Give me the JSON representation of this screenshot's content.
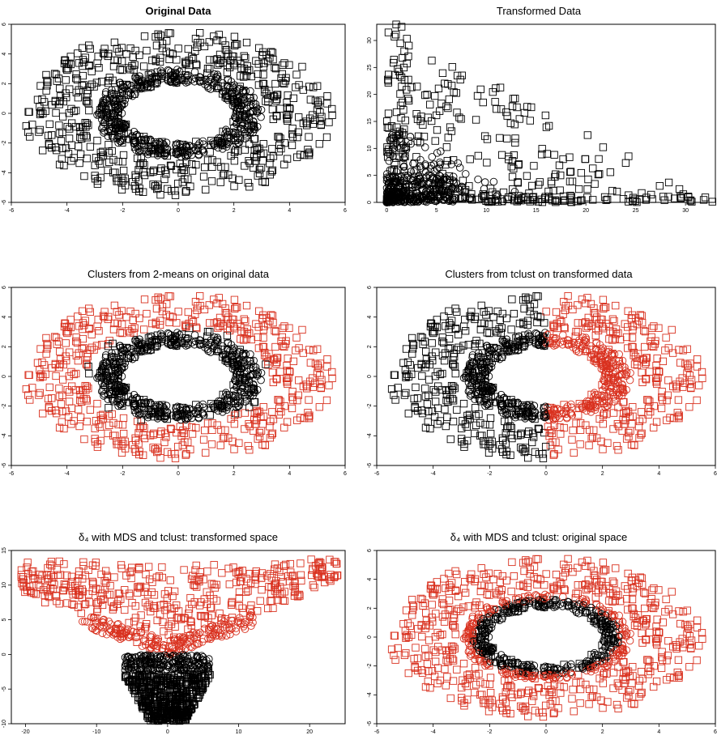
{
  "colors": {
    "cluster_a": "#000000",
    "cluster_b": "#d9311f",
    "frame": "#000000"
  },
  "panels": [
    {
      "title": "Original Data"
    },
    {
      "title": "Transformed Data"
    },
    {
      "title": "Clusters from 2-means on original data"
    },
    {
      "title": "Clusters from tclust on transformed data"
    },
    {
      "title": "δ₄ with MDS and tclust: transformed space"
    },
    {
      "title": "δ₄ with MDS and tclust: original space"
    }
  ],
  "chart_data": [
    {
      "type": "scatter",
      "title": "Original Data",
      "xlim": [
        -6,
        6
      ],
      "ylim": [
        -6,
        6
      ],
      "x_ticks": [
        -6,
        -4,
        -2,
        0,
        2,
        4,
        6
      ],
      "y_ticks": [
        -6,
        -4,
        -2,
        0,
        2,
        4,
        6
      ],
      "series": [
        {
          "marker": "circle",
          "color": "#000000",
          "shape": "inner ring",
          "radius_range": [
            2,
            3
          ],
          "count": 500
        },
        {
          "marker": "square",
          "color": "#000000",
          "shape": "outer ring",
          "radius_range": [
            3,
            5.8
          ],
          "count": 500
        }
      ]
    },
    {
      "type": "scatter",
      "title": "Transformed Data",
      "xlim": [
        -1,
        33
      ],
      "ylim": [
        0,
        33
      ],
      "x_ticks": [
        0,
        5,
        10,
        15,
        20,
        25,
        30
      ],
      "y_ticks": [
        0,
        5,
        10,
        15,
        20,
        25,
        30
      ],
      "series": [
        {
          "marker": "circle",
          "color": "#000000",
          "region": "x + y ≤ 16",
          "count": 500
        },
        {
          "marker": "square",
          "color": "#000000",
          "region": "x + y ≤ 34",
          "count": 500
        }
      ]
    },
    {
      "type": "scatter",
      "title": "Clusters from 2-means on original data",
      "xlim": [
        -6,
        6
      ],
      "ylim": [
        -6,
        6
      ],
      "x_ticks": [
        -6,
        -4,
        -2,
        0,
        2,
        4,
        6
      ],
      "y_ticks": [
        -6,
        -4,
        -2,
        0,
        2,
        4,
        6
      ],
      "series": [
        {
          "marker": "circle",
          "color": "#000000",
          "cluster": 1,
          "rule": "inner ring"
        },
        {
          "marker": "square",
          "color": "#000000",
          "cluster": 1,
          "rule": "outer ring, radius < 3.3"
        },
        {
          "marker": "circle",
          "color": "#d9311f",
          "cluster": 2,
          "rule": "inner ring, radius > 3.5"
        },
        {
          "marker": "square",
          "color": "#d9311f",
          "cluster": 2,
          "rule": "outer ring, radius ≥ 3.3"
        }
      ]
    },
    {
      "type": "scatter",
      "title": "Clusters from tclust on transformed data",
      "xlim": [
        -6,
        6
      ],
      "ylim": [
        -6,
        6
      ],
      "x_ticks": [
        -6,
        -4,
        -2,
        0,
        2,
        4,
        6
      ],
      "y_ticks": [
        -6,
        -4,
        -2,
        0,
        2,
        4,
        6
      ],
      "series": [
        {
          "marker": "circle",
          "color": "#000000",
          "cluster": 1,
          "rule": "x < 0"
        },
        {
          "marker": "square",
          "color": "#000000",
          "cluster": 1,
          "rule": "x < 0"
        },
        {
          "marker": "circle",
          "color": "#d9311f",
          "cluster": 2,
          "rule": "x ≥ 0"
        },
        {
          "marker": "square",
          "color": "#d9311f",
          "cluster": 2,
          "rule": "x ≥ 0"
        }
      ]
    },
    {
      "type": "scatter",
      "title": "δ₄ with MDS and tclust: transformed space",
      "xlim": [
        -22,
        25
      ],
      "ylim": [
        -10,
        15
      ],
      "x_ticks": [
        -20,
        -10,
        0,
        10,
        20
      ],
      "y_ticks": [
        -10,
        -5,
        0,
        5,
        10,
        15
      ],
      "series": [
        {
          "marker": "square",
          "color": "#000000",
          "cluster": 1,
          "region": "dense fan, x -6..6, y -9.5..-3"
        },
        {
          "marker": "circle",
          "color": "#000000",
          "cluster": 1,
          "region": "arc, x -6..6, y -2..0"
        },
        {
          "marker": "circle",
          "color": "#d9311f",
          "cluster": 2,
          "region": "V-shaped band, x -12..12, y 0..5"
        },
        {
          "marker": "square",
          "color": "#d9311f",
          "cluster": 2,
          "region": "wide V, x -21..24, y 0..14"
        }
      ]
    },
    {
      "type": "scatter",
      "title": "δ₄ with MDS and tclust: original space",
      "xlim": [
        -6,
        6
      ],
      "ylim": [
        -6,
        6
      ],
      "x_ticks": [
        -6,
        -4,
        -2,
        0,
        2,
        4,
        6
      ],
      "y_ticks": [
        -6,
        -4,
        -2,
        0,
        2,
        4,
        6
      ],
      "series": [
        {
          "marker": "circle",
          "color": "#000000",
          "cluster": 1,
          "rule": "inner ring, radius < 2.6"
        },
        {
          "marker": "square",
          "color": "#000000",
          "cluster": 1,
          "rule": "inner ring, radius < 2.6"
        },
        {
          "marker": "circle",
          "color": "#d9311f",
          "cluster": 2,
          "rule": "radius ≥ 2.6"
        },
        {
          "marker": "square",
          "color": "#d9311f",
          "cluster": 2,
          "rule": "radius ≥ 2.6"
        }
      ]
    }
  ]
}
